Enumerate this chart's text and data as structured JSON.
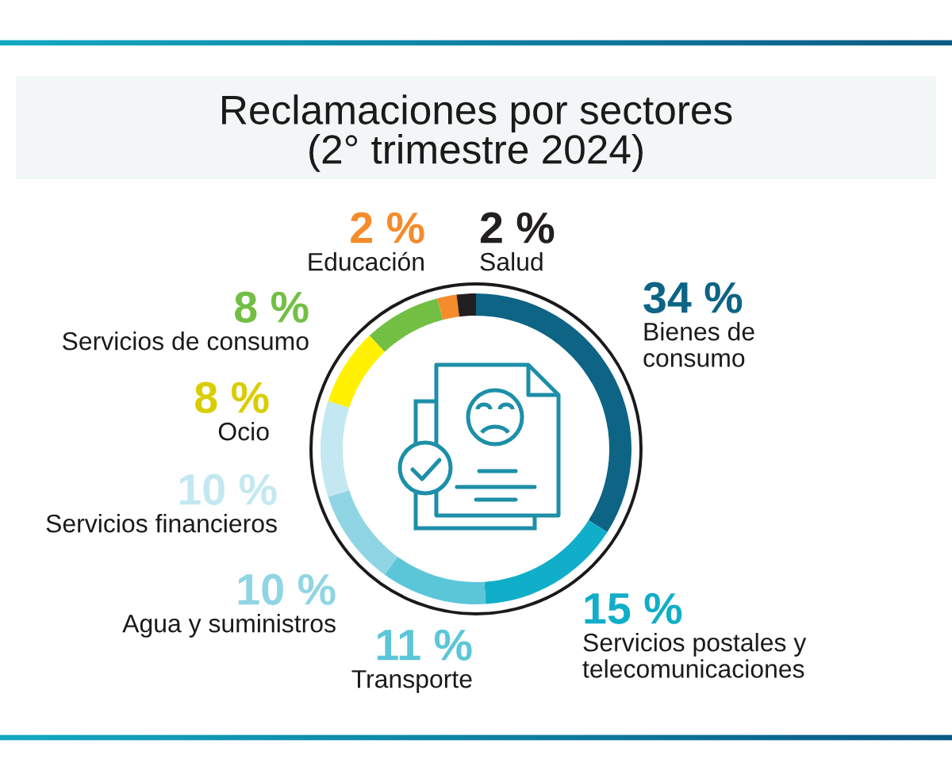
{
  "chart_data": {
    "type": "donut",
    "title": "Reclamaciones por sectores\n(2° trimestre 2024)",
    "categories": [
      "Bienes de\nconsumo",
      "Servicios postales y\ntelecomunicaciones",
      "Transporte",
      "Agua y suministros",
      "Servicios financieros",
      "Ocio",
      "Servicios de consumo",
      "Educación",
      "Salud"
    ],
    "values": [
      34,
      15,
      11,
      10,
      10,
      8,
      8,
      2,
      2
    ],
    "value_labels": [
      "34 %",
      "15 %",
      "11 %",
      "10 %",
      "10 %",
      "8 %",
      "8 %",
      "2 %",
      "2 %"
    ],
    "colors": [
      "#0d6485",
      "#10aec8",
      "#5cc6d9",
      "#90d5e4",
      "#c4e8f1",
      "#fff100",
      "#72bf44",
      "#f58b2b",
      "#231f20"
    ]
  }
}
